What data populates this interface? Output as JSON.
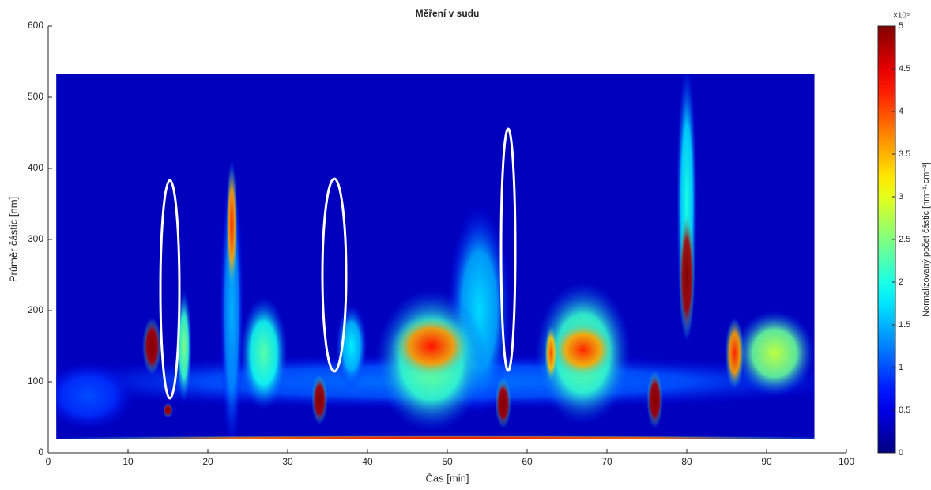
{
  "chart_data": {
    "type": "heatmap",
    "title": "Měření v sudu",
    "xlabel": "Čas [min]",
    "ylabel": "Průměr částic [nm]",
    "colorbar_label": "Normalizovaný počet částic [nm⁻¹·cm⁻³]",
    "colorbar_multiplier": "×10⁵",
    "xlim": [
      0,
      100
    ],
    "xticks": [
      0,
      10,
      20,
      30,
      40,
      50,
      60,
      70,
      80,
      90,
      100
    ],
    "ylim": [
      0,
      600
    ],
    "yticks": [
      0,
      100,
      200,
      300,
      400,
      500,
      600
    ],
    "clim": [
      0,
      500000
    ],
    "cticks": [
      {
        "value": 0,
        "label": "0"
      },
      {
        "value": 50000,
        "label": "0.5"
      },
      {
        "value": 100000,
        "label": "1"
      },
      {
        "value": 150000,
        "label": "1.5"
      },
      {
        "value": 200000,
        "label": "2"
      },
      {
        "value": 250000,
        "label": "2.5"
      },
      {
        "value": 300000,
        "label": "3"
      },
      {
        "value": 350000,
        "label": "3.5"
      },
      {
        "value": 400000,
        "label": "4"
      },
      {
        "value": 450000,
        "label": "4.5"
      },
      {
        "value": 500000,
        "label": "5"
      }
    ],
    "x_extent": [
      1,
      96
    ],
    "y_extent": [
      20,
      533
    ],
    "x": [
      50,
      5,
      54,
      38,
      27,
      23,
      80,
      17,
      91,
      48,
      67,
      48,
      67,
      63,
      86,
      23,
      50,
      13,
      15,
      34,
      57,
      76,
      80
    ],
    "y": [
      100,
      80,
      200,
      150,
      140,
      200,
      350,
      150,
      140,
      130,
      140,
      150,
      145,
      140,
      140,
      320,
      21,
      150,
      60,
      75,
      70,
      75,
      250
    ],
    "x_spread": [
      55,
      6,
      4,
      2,
      3,
      1.5,
      1.3,
      1,
      5,
      7,
      6,
      5,
      4,
      0.8,
      1.2,
      0.7,
      50,
      1.2,
      0.6,
      1,
      1,
      1,
      1
    ],
    "y_spread": [
      40,
      50,
      150,
      60,
      80,
      200,
      200,
      80,
      60,
      100,
      100,
      45,
      40,
      40,
      50,
      90,
      3,
      40,
      10,
      35,
      35,
      40,
      90
    ],
    "values": [
      120000,
      100000,
      170000,
      180000,
      230000,
      150000,
      200000,
      250000,
      280000,
      250000,
      250000,
      430000,
      420000,
      400000,
      420000,
      420000,
      450000,
      500000,
      500000,
      500000,
      500000,
      500000,
      500000
    ]
  }
}
